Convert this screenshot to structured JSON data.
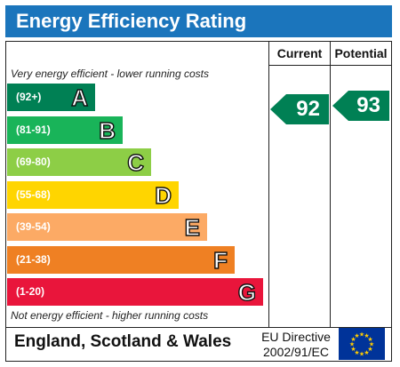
{
  "title": "Energy Efficiency Rating",
  "columns": {
    "current": "Current",
    "potential": "Potential"
  },
  "captions": {
    "top": "Very energy efficient - lower running costs",
    "bottom": "Not energy efficient - higher running costs"
  },
  "chart_data": {
    "type": "bar",
    "categories": [
      "A",
      "B",
      "C",
      "D",
      "E",
      "F",
      "G"
    ],
    "ranges": [
      "(92+)",
      "(81-91)",
      "(69-80)",
      "(55-68)",
      "(39-54)",
      "(21-38)",
      "(1-20)"
    ],
    "colors": [
      "#008054",
      "#19b459",
      "#8dce46",
      "#ffd500",
      "#fcaa65",
      "#ef8023",
      "#e9153b"
    ],
    "ratings": {
      "current": 92,
      "potential": 93
    },
    "rating_color": "#008054"
  },
  "footer": {
    "region": "England, Scotland & Wales",
    "directive_line1": "EU Directive",
    "directive_line2": "2002/91/EC"
  }
}
